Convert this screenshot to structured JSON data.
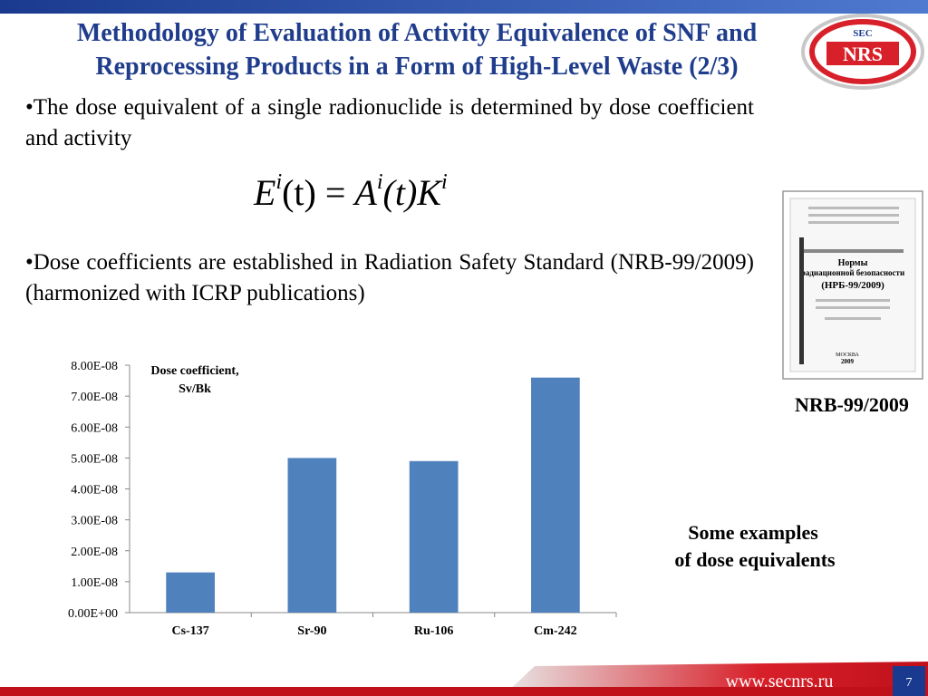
{
  "title": [
    "Methodology of Evaluation of Activity Equivalence of SNF and",
    "Reprocessing Products in a Form of High-Level Waste (2/3)"
  ],
  "logo": {
    "top": "SEC",
    "main": "NRS"
  },
  "bullets": [
    "•The dose equivalent of a single radionuclide is determined by dose coefficient and activity",
    "•Dose coefficients are established in Radiation Safety Standard (NRB-99/2009) (harmonized with ICRP publications)"
  ],
  "formula": [
    "E",
    "i",
    "(t) = ",
    "A",
    "i",
    "(t)",
    "K",
    "i"
  ],
  "book": {
    "lines": [
      "Нормы",
      "радиационной безопасности",
      "(НРБ-99/2009)",
      "МОСКВА",
      "2009"
    ]
  },
  "book_caption": "NRB-99/2009",
  "side_note": [
    "Some examples",
    "of dose equivalents"
  ],
  "footer_url": "www.secnrs.ru",
  "page_number": "7",
  "chart_data": {
    "type": "bar",
    "categories": [
      "Cs-137",
      "Sr-90",
      "Ru-106",
      "Cm-242"
    ],
    "series": [
      {
        "name": "Dose coefficient, Sv/Bk",
        "color": "#4f81bd",
        "values": [
          1.3e-08,
          5e-08,
          4.9e-08,
          7.6e-08
        ]
      }
    ],
    "ylim": [
      0,
      8e-08
    ],
    "yticks": [
      {
        "value": 0,
        "label": "0.00E+00"
      },
      {
        "value": 1e-08,
        "label": "1.00E-08"
      },
      {
        "value": 2e-08,
        "label": "2.00E-08"
      },
      {
        "value": 3e-08,
        "label": "3.00E-08"
      },
      {
        "value": 4e-08,
        "label": "4.00E-08"
      },
      {
        "value": 5e-08,
        "label": "5.00E-08"
      },
      {
        "value": 6e-08,
        "label": "6.00E-08"
      },
      {
        "value": 7e-08,
        "label": "7.00E-08"
      },
      {
        "value": 8e-08,
        "label": "8.00E-08"
      }
    ],
    "grid": false
  }
}
